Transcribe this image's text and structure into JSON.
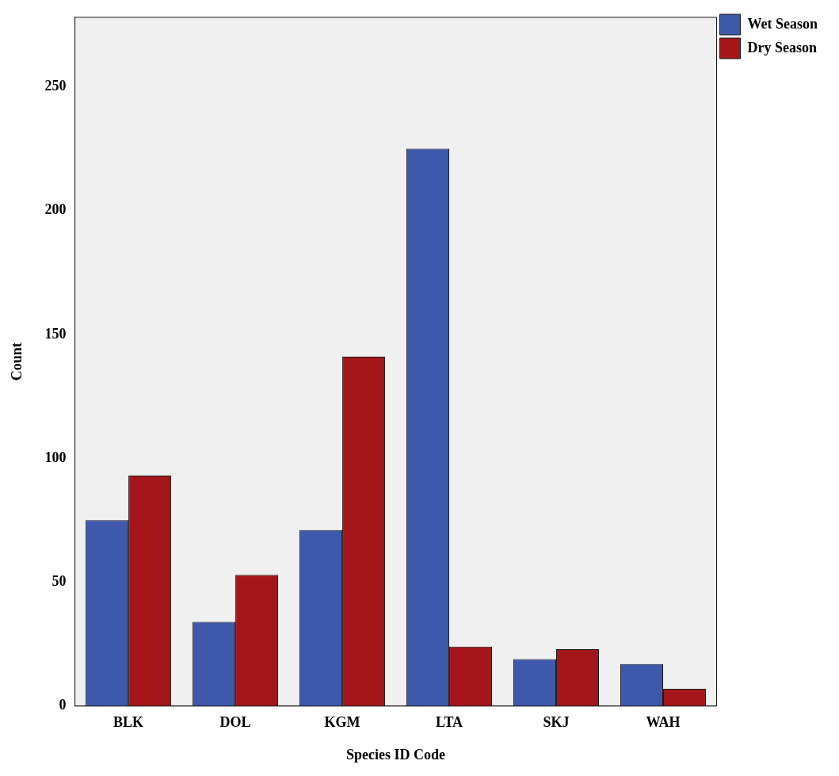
{
  "chart_data": {
    "type": "bar",
    "xlabel": "Species ID Code",
    "ylabel": "Count",
    "categories": [
      "BLK",
      "DOL",
      "KGM",
      "LTA",
      "SKJ",
      "WAH"
    ],
    "series": [
      {
        "name": "Wet Season",
        "color": "#3e58ac",
        "values": [
          75,
          34,
          71,
          225,
          19,
          17
        ]
      },
      {
        "name": "Dry Season",
        "color": "#a4161a",
        "values": [
          93,
          53,
          141,
          24,
          23,
          7
        ]
      }
    ],
    "ylim": [
      0,
      278
    ],
    "yticks": [
      0,
      50,
      100,
      150,
      200,
      250
    ],
    "grid": false,
    "legend": "top right"
  }
}
